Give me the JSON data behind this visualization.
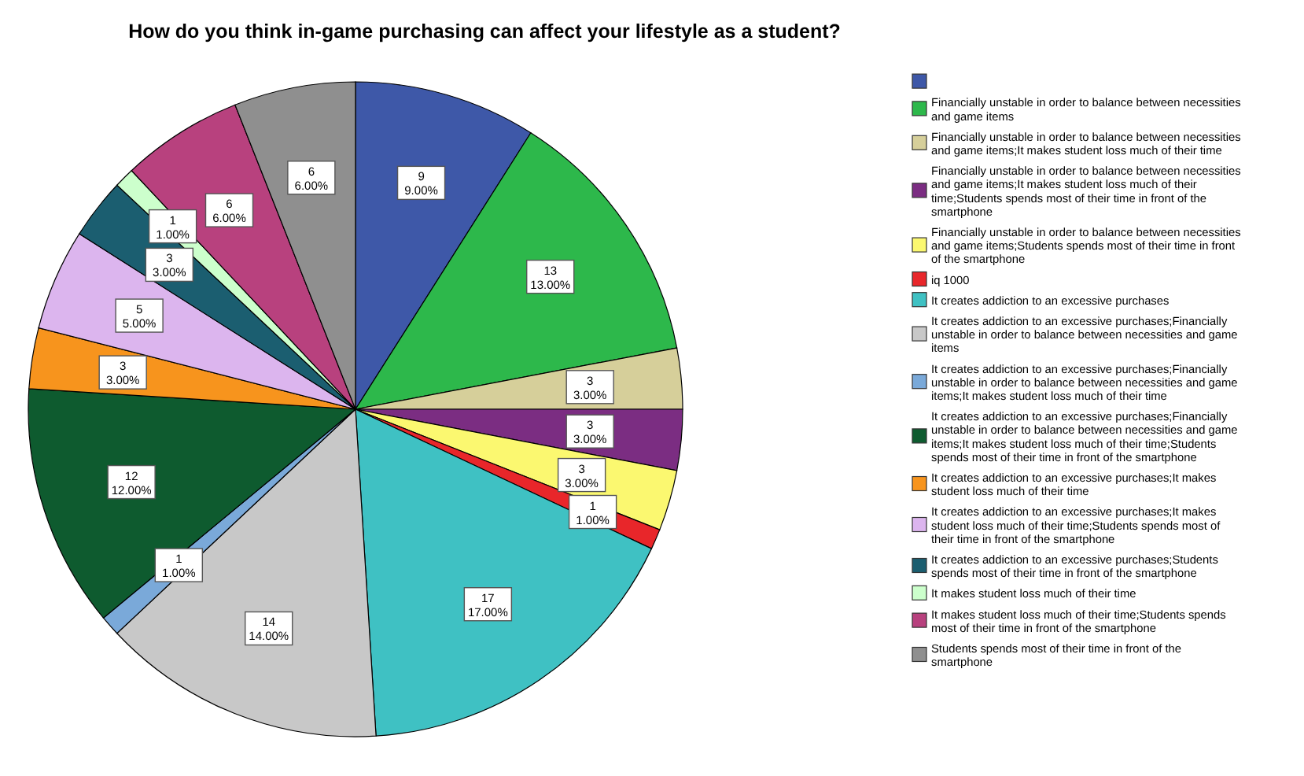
{
  "chart_data": {
    "type": "pie",
    "title": "How do you think in-game purchasing can affect your lifestyle as a student?",
    "categories": [
      null,
      "Financially unstable in order to balance between necessities and game items",
      "Financially unstable in order to balance between necessities and game items;It makes student loss much of their time",
      "Financially unstable in order to balance between necessities and game items;It makes student loss much of their time;Students spends most of their time in front of the smartphone",
      "Financially unstable in order to balance between necessities and game items;Students spends most of their time in front of the smartphone",
      "iq 1000",
      "It creates addiction to an excessive purchases",
      "It creates addiction to an excessive purchases;Financially unstable in order to balance between necessities and game items",
      "It creates addiction to an excessive purchases;Financially unstable in order to balance between necessities and game items;It makes student loss much of their time",
      "It creates addiction to an excessive purchases;Financially unstable in order to balance between necessities and game items;It makes student loss much of their time;Students spends most of their time in front of the smartphone",
      "It creates addiction to an excessive purchases;It makes student loss much of their time",
      "It creates addiction to an excessive purchases;It makes student loss much of their time;Students spends most of their time in front of the smartphone",
      "It creates addiction to an excessive purchases;Students spends most of their time in front of the smartphone",
      "It makes student loss much of their time",
      "It makes student loss much of their time;Students spends most of their time in front of the smartphone",
      "Students spends most of their time in front of the smartphone"
    ],
    "values": [
      9,
      13,
      3,
      3,
      3,
      1,
      17,
      14,
      1,
      12,
      3,
      5,
      3,
      1,
      6,
      6
    ],
    "value_labels": [
      "9 9.00%",
      "13 13.00%",
      "3 3.00%",
      "3 3.00%",
      "3 3.00%",
      "1 1.00%",
      "17 17.00%",
      "14 14.00%",
      "1 1.00%",
      "12 12.00%",
      "3 3.00%",
      "5 5.00%",
      "3 3.00%",
      "1 1.00%",
      "6 6.00%",
      "6 6.00%"
    ],
    "colors": [
      "#3e58a8",
      "#2db84b",
      "#d6cf9a",
      "#7b2d82",
      "#fbf870",
      "#e8262a",
      "#3fc1c3",
      "#c8c8c8",
      "#7aa9d9",
      "#0e5b2f",
      "#f7941d",
      "#dcb5ee",
      "#1b5e70",
      "#ccffcc",
      "#b8417e",
      "#8f8f8f"
    ],
    "legend": "right"
  }
}
